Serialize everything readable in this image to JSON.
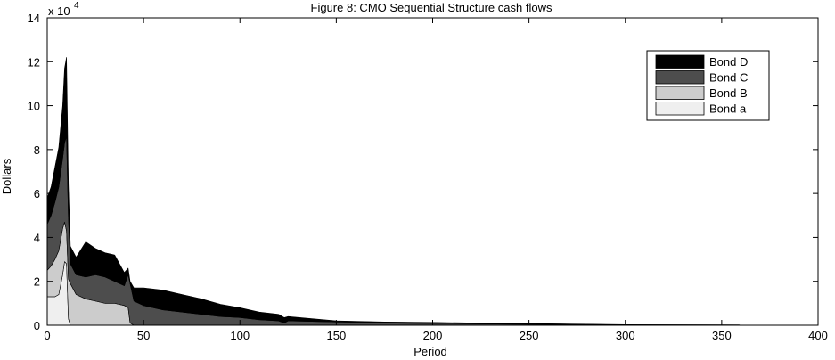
{
  "chart_data": {
    "type": "area",
    "title": "Figure 8: CMO Sequential Structure cash flows",
    "xlabel": "Period",
    "ylabel": "Dollars",
    "y_multiplier_base": "x 10",
    "y_multiplier_exponent": "4",
    "xlim": [
      0,
      400
    ],
    "ylim": [
      0,
      14
    ],
    "xticks": [
      0,
      50,
      100,
      150,
      200,
      250,
      300,
      350,
      400
    ],
    "yticks": [
      0,
      2,
      4,
      6,
      8,
      10,
      12,
      14
    ],
    "stacked": true,
    "grid": false,
    "legend_position": "top-right",
    "legend_order": [
      "Bond D",
      "Bond C",
      "Bond B",
      "Bond a"
    ],
    "x": [
      0,
      2,
      4,
      6,
      8,
      9,
      10,
      11,
      12,
      15,
      20,
      25,
      30,
      35,
      40,
      42,
      43,
      45,
      50,
      60,
      70,
      80,
      90,
      100,
      110,
      120,
      123,
      125,
      150,
      175,
      200,
      225,
      250,
      280,
      300,
      359,
      360
    ],
    "series": [
      {
        "name": "Bond a",
        "color": "#efefef",
        "values": [
          1.3,
          1.3,
          1.3,
          1.4,
          2.3,
          2.9,
          2.8,
          0.3,
          0,
          0,
          0,
          0,
          0,
          0,
          0,
          0,
          0,
          0,
          0,
          0,
          0,
          0,
          0,
          0,
          0,
          0,
          0,
          0,
          0,
          0,
          0,
          0,
          0,
          0,
          0,
          0,
          0
        ]
      },
      {
        "name": "Bond B",
        "color": "#cccccc",
        "values": [
          1.2,
          1.4,
          1.7,
          2.0,
          2.1,
          1.8,
          1.5,
          1.8,
          1.9,
          1.4,
          1.2,
          1.1,
          1.0,
          1.0,
          0.9,
          0.8,
          0.1,
          0,
          0,
          0,
          0,
          0,
          0,
          0,
          0,
          0,
          0,
          0,
          0,
          0,
          0,
          0,
          0,
          0,
          0,
          0,
          0
        ]
      },
      {
        "name": "Bond C",
        "color": "#4d4d4d",
        "values": [
          2.1,
          2.3,
          2.6,
          2.9,
          3.2,
          3.6,
          4.3,
          2.8,
          0.9,
          0.9,
          1.0,
          1.2,
          1.2,
          1.0,
          0.9,
          1.5,
          1.8,
          1.1,
          0.9,
          0.7,
          0.6,
          0.5,
          0.4,
          0.35,
          0.25,
          0.2,
          0.1,
          0.2,
          0.15,
          0.1,
          0.08,
          0.06,
          0.04,
          0.02,
          0.01,
          0.0,
          0
        ]
      },
      {
        "name": "Bond D",
        "color": "#000000",
        "values": [
          1.2,
          1.3,
          1.6,
          1.8,
          2.4,
          3.4,
          3.6,
          1.5,
          0.8,
          0.8,
          1.6,
          1.2,
          1.1,
          1.2,
          0.6,
          0.3,
          0.1,
          0.6,
          0.8,
          0.9,
          0.8,
          0.7,
          0.55,
          0.45,
          0.35,
          0.3,
          0.25,
          0.2,
          0.05,
          0.05,
          0.05,
          0.04,
          0.04,
          0.03,
          0.02,
          0.02,
          0
        ]
      }
    ]
  }
}
